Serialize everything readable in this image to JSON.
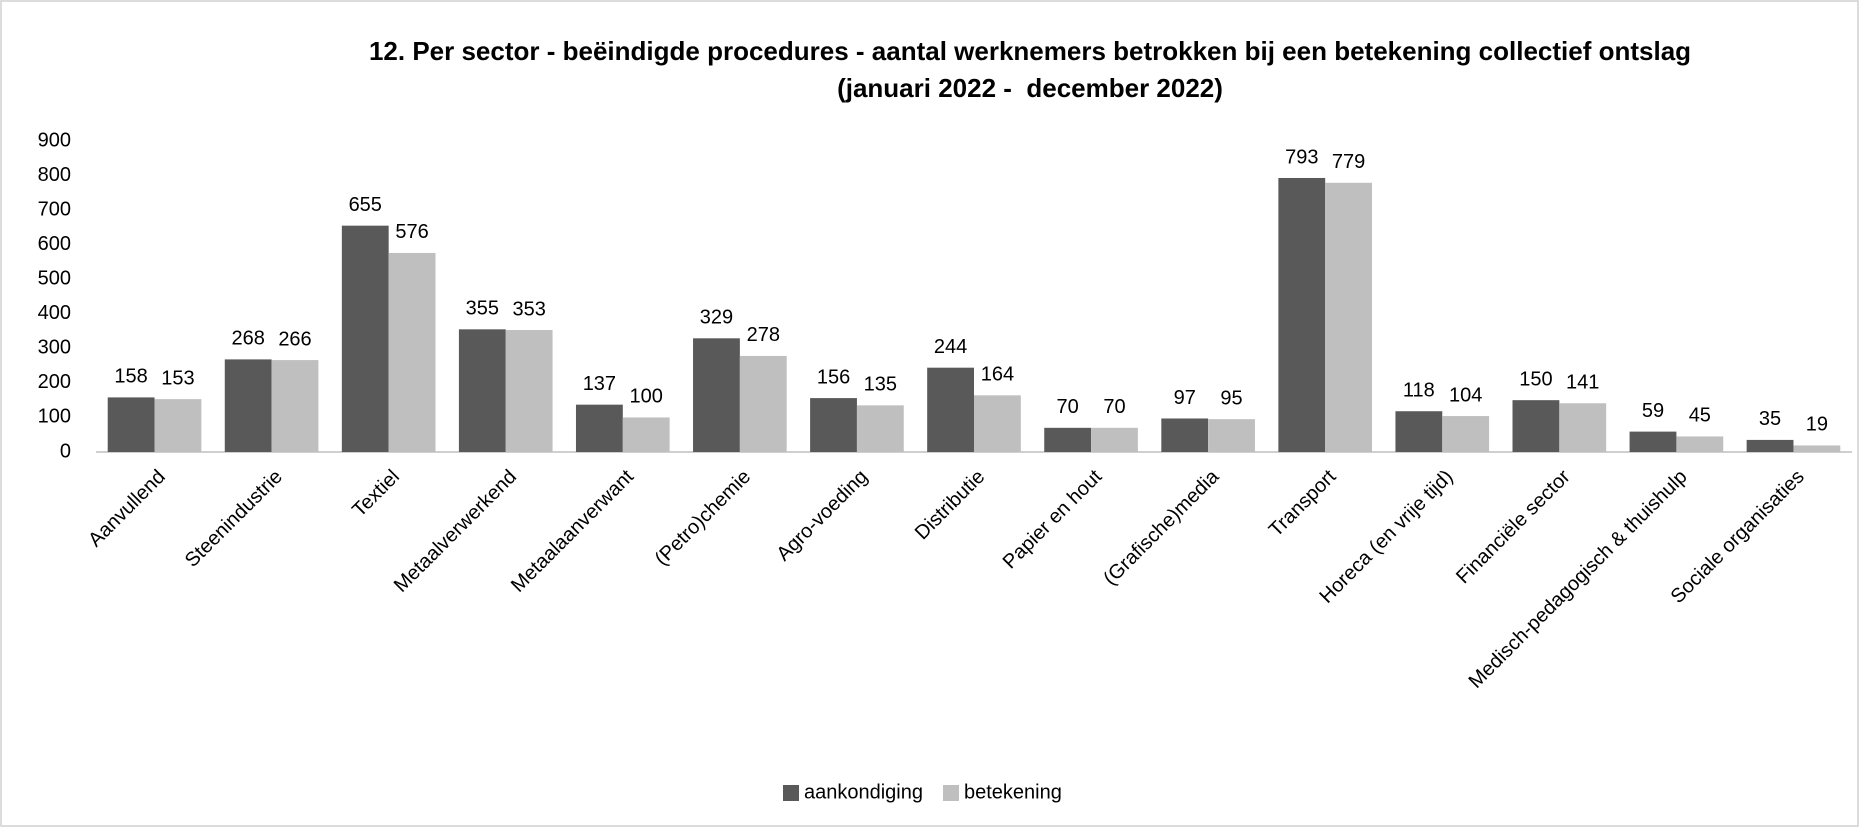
{
  "chart_data": {
    "type": "bar",
    "title": "12. Per sector - beëindigde procedures - aantal werknemers betrokken bij een betekening collectief ontslag",
    "subtitle": "(januari 2022 -  december 2022)",
    "categories": [
      "Aanvullend",
      "Steenindustrie",
      "Textiel",
      "Metaalverwerkend",
      "Metaalaanverwant",
      "(Petro)chemie",
      "Agro-voeding",
      "Distributie",
      "Papier en hout",
      "(Grafische)media",
      "Transport",
      "Horeca (en vrije tijd)",
      "Financiële sector",
      "Medisch-pedagogisch & thuishulp",
      "Sociale organisaties"
    ],
    "series": [
      {
        "name": "aankondiging",
        "color": "#595959",
        "values": [
          158,
          268,
          655,
          355,
          137,
          329,
          156,
          244,
          70,
          97,
          793,
          118,
          150,
          59,
          35
        ]
      },
      {
        "name": "betekening",
        "color": "#bfbfbf",
        "values": [
          153,
          266,
          576,
          353,
          100,
          278,
          135,
          164,
          70,
          95,
          779,
          104,
          141,
          45,
          19
        ]
      }
    ],
    "ylim": [
      0,
      900
    ],
    "yticks": [
      0,
      100,
      200,
      300,
      400,
      500,
      600,
      700,
      800,
      900
    ],
    "grid": false,
    "legend": "bottom"
  }
}
